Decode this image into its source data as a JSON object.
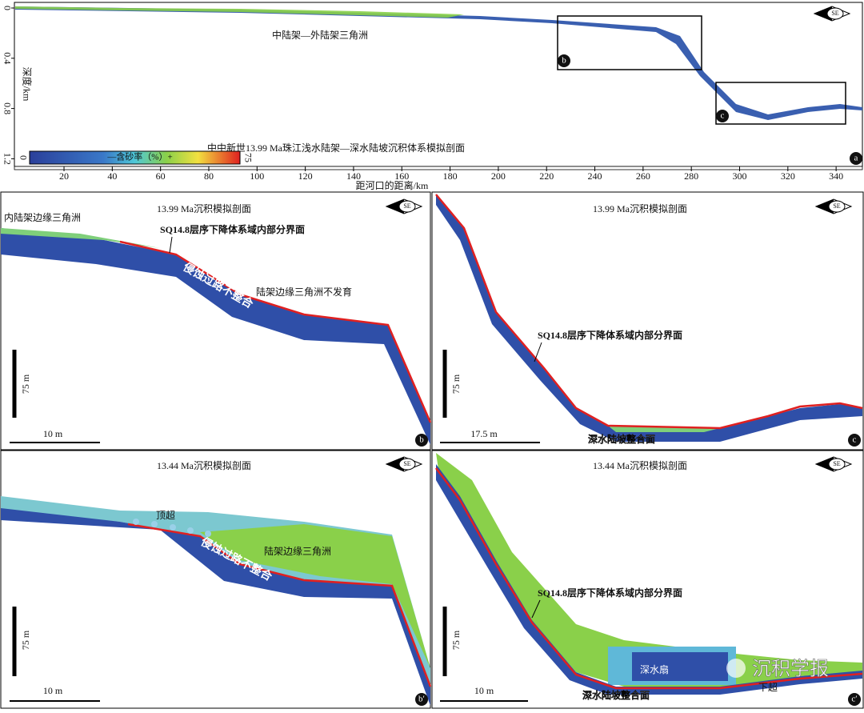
{
  "panel_a": {
    "label": "a",
    "compass": "SE",
    "annotations": [
      "中陆架—外陆架三角洲",
      "中中新世13.99 Ma珠江浅水陆架—深水陆坡沉积体系模拟剖面"
    ],
    "inset_labels": [
      "b",
      "c"
    ],
    "y_axis_label": "深度/km",
    "y_ticks": [
      0,
      0.4,
      0.8,
      1.2
    ],
    "x_axis_label": "距河口的距离/km",
    "x_ticks": [
      20,
      40,
      60,
      80,
      100,
      120,
      140,
      160,
      180,
      200,
      220,
      240,
      260,
      280,
      300,
      320,
      340
    ],
    "colorbar": {
      "title": "—含砂率（%）+",
      "min": 0,
      "max": 75
    }
  },
  "panel_b": {
    "label": "b",
    "compass": "SE",
    "title": "13.99 Ma沉积模拟剖面",
    "annotations": [
      "内陆架边缘三角洲",
      "SQ14.8层序下降体系域内部分界面",
      "侵蚀过路不整合",
      "陆架边缘三角洲不发育"
    ],
    "vertical_scale": "75 m",
    "horizontal_scale": "10 m"
  },
  "panel_c": {
    "label": "c",
    "compass": "SE",
    "title": "13.99 Ma沉积模拟剖面",
    "annotations": [
      "SQ14.8层序下降体系域内部分界面",
      "深水陆坡整合面"
    ],
    "vertical_scale": "75 m",
    "horizontal_scale": "17.5 m"
  },
  "panel_b2": {
    "label": "b′",
    "compass": "SE",
    "title": "13.44 Ma沉积模拟剖面",
    "annotations": [
      "顶超",
      "陆架边缘三角洲",
      "侵蚀过路不整合"
    ],
    "vertical_scale": "75 m",
    "horizontal_scale": "10 m"
  },
  "panel_c2": {
    "label": "c′",
    "compass": "SE",
    "title": "13.44 Ma沉积模拟剖面",
    "annotations": [
      "SQ14.8层序下降体系域内部分界面",
      "深水扇",
      "下超",
      "深水陆坡整合面"
    ],
    "vertical_scale": "75 m",
    "horizontal_scale": "10 m"
  },
  "watermark": "沉积学报"
}
